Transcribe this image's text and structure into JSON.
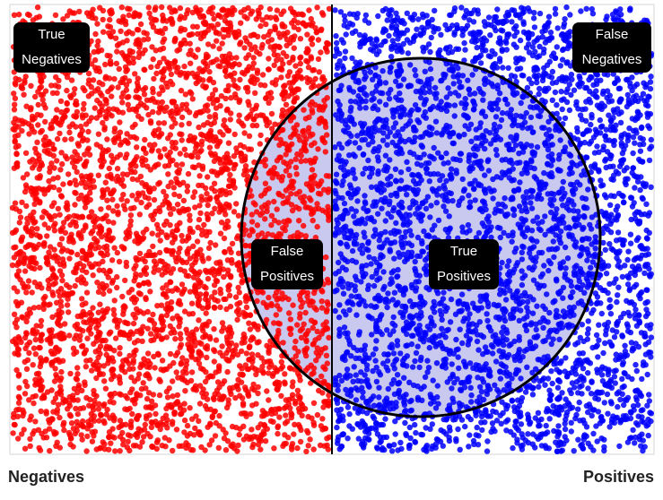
{
  "regions": {
    "true_negatives": [
      "True",
      "Negatives"
    ],
    "false_negatives": [
      "False",
      "Negatives"
    ],
    "false_positives": [
      "False",
      "Positives"
    ],
    "true_positives": [
      "True",
      "Positives"
    ]
  },
  "axis": {
    "left_label": "Negatives",
    "right_label": "Positives"
  },
  "colors": {
    "negative_dot": "#ff0000",
    "positive_dot": "#0000ff",
    "selection_fill": "#c9c9ef",
    "selection_stroke": "#000000",
    "divider": "#000000",
    "frame": "#d6d6d6"
  }
}
